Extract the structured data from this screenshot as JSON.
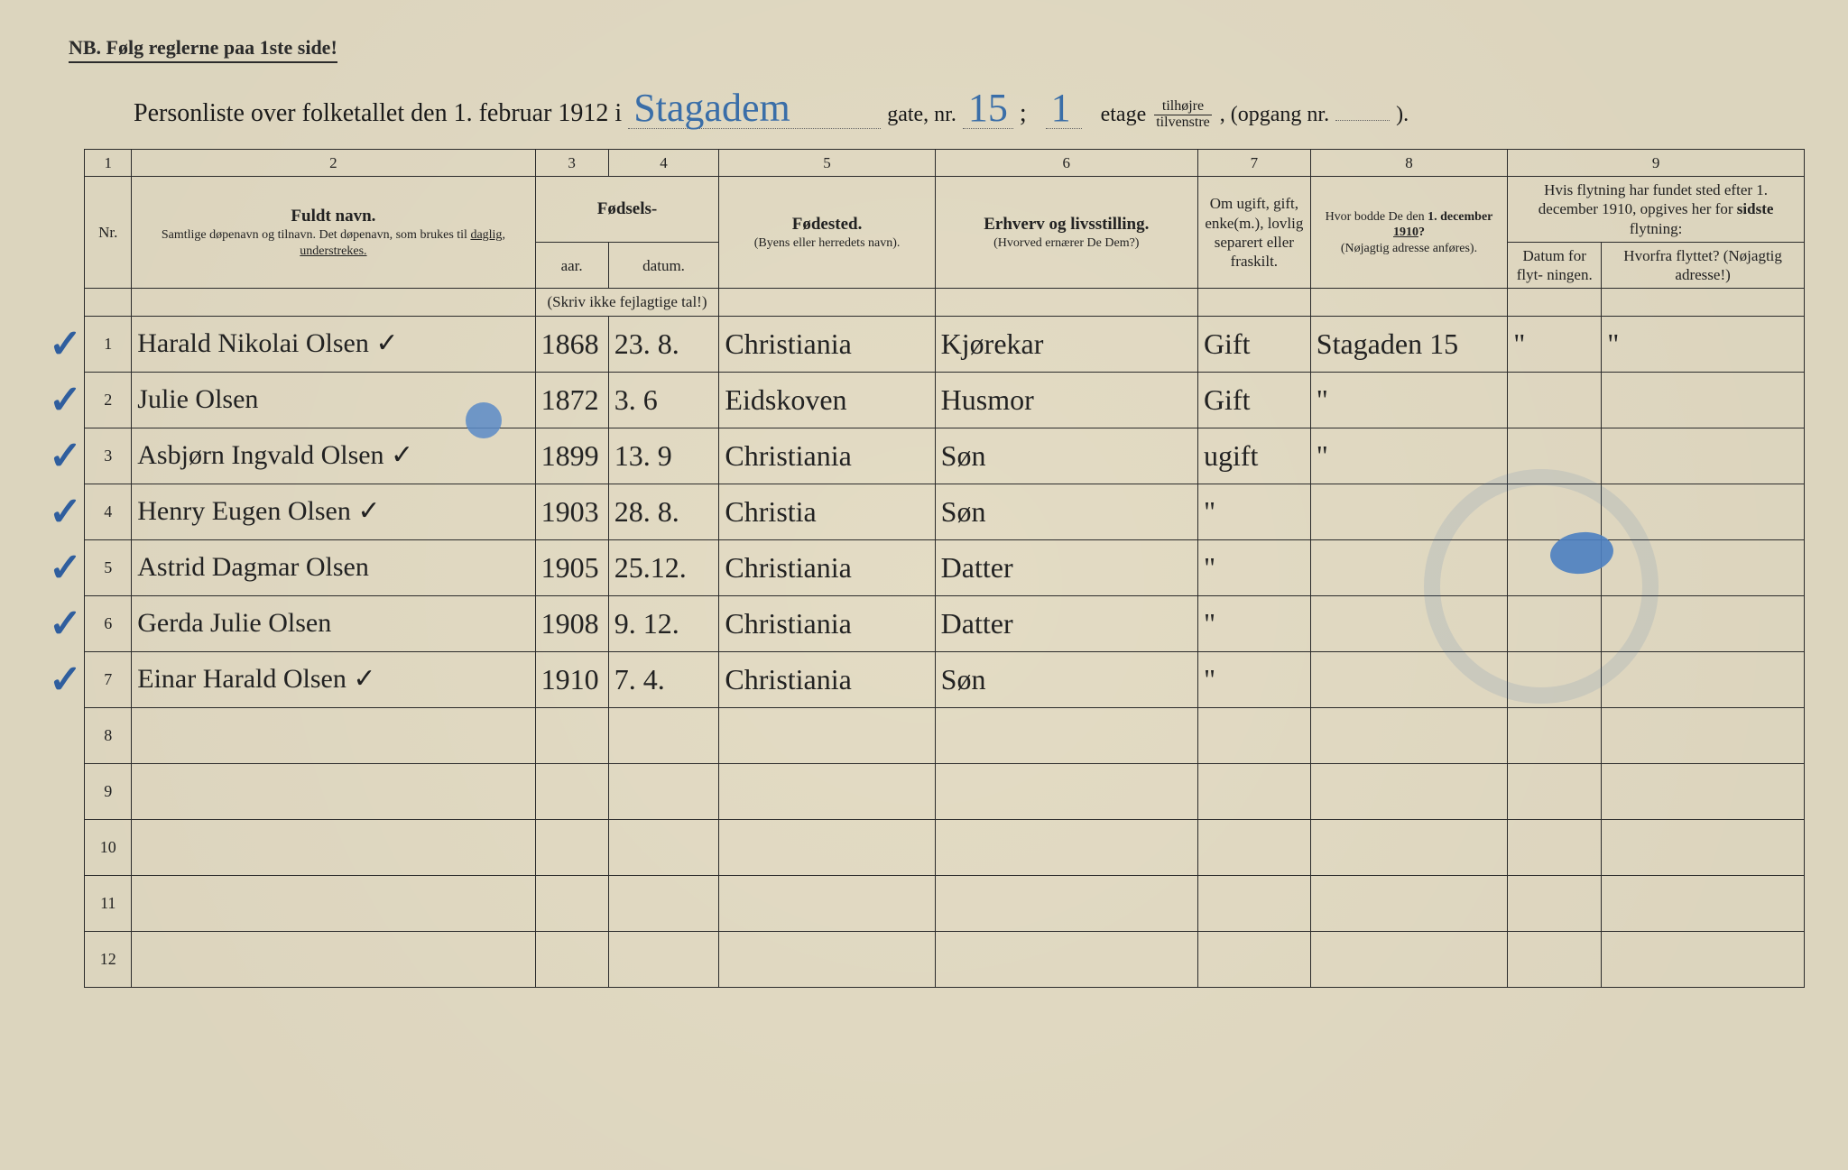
{
  "page": {
    "background_color": "#e8e0c8",
    "ink_color": "#2b2b2b",
    "hand_color": "#3763a0"
  },
  "nb_text": "NB.  Følg reglerne paa 1ste side!",
  "title": {
    "prefix": "Personliste over folketallet den 1. februar 1912 i",
    "street_hand": "Stagadem",
    "gate_label": "gate, nr.",
    "nr_hand": "15",
    "semicolon": ";",
    "etage_hand": "1",
    "etage_label": "etage",
    "fraction_top": "tilhøjre",
    "fraction_bot": "tilvenstre",
    "after_fraction": ", (opgang nr.",
    "opgang_hand": "",
    "end": ")."
  },
  "columns": {
    "nums": [
      "1",
      "2",
      "3",
      "4",
      "5",
      "6",
      "7",
      "8",
      "9"
    ],
    "nr": "Nr.",
    "name_main": "Fuldt navn.",
    "name_sub": "Samtlige døpenavn og tilnavn. Det døpenavn, som brukes til daglig, understrekes.",
    "birth_group": "Fødsels-",
    "birth_year": "aar.",
    "birth_date": "datum.",
    "birth_note": "(Skriv ikke fejlagtige tal!)",
    "place_main": "Fødested.",
    "place_sub": "(Byens eller herredets navn).",
    "occ_main": "Erhverv og livsstilling.",
    "occ_sub": "(Hvorved ernærer De Dem?)",
    "civil": "Om ugift, gift, enke(m.), lovlig separert eller fraskilt.",
    "addr_main": "Hvor bodde De den 1. december 1910?",
    "addr_sub": "(Nøjagtig adresse anføres).",
    "move_group": "Hvis flytning har fundet sted efter 1. december 1910, opgives her for sidste flytning:",
    "move_date": "Datum for flyt- ningen.",
    "move_from": "Hvorfra flyttet? (Nøjagtig adresse!)"
  },
  "rows": [
    {
      "n": "1",
      "check": "✓",
      "name": "Harald Nikolai Olsen ✓",
      "year": "1868",
      "date": "23. 8.",
      "place": "Christiania",
      "occ": "Kjørekar",
      "civil": "Gift",
      "addr": "Stagaden 15",
      "mdate": "\"",
      "from": "\""
    },
    {
      "n": "2",
      "check": "✓",
      "name": "Julie Olsen",
      "year": "1872",
      "date": "3. 6",
      "place": "Eidskoven",
      "occ": "Husmor",
      "civil": "Gift",
      "addr": "\"",
      "mdate": "",
      "from": ""
    },
    {
      "n": "3",
      "check": "✓",
      "name": "Asbjørn Ingvald Olsen ✓",
      "year": "1899",
      "date": "13. 9",
      "place": "Christiania",
      "occ": "Søn",
      "civil": "ugift",
      "addr": "\"",
      "mdate": "",
      "from": ""
    },
    {
      "n": "4",
      "check": "✓",
      "name": "Henry Eugen Olsen ✓",
      "year": "1903",
      "date": "28. 8.",
      "place": "Christia",
      "occ": "Søn",
      "civil": "\"",
      "addr": "",
      "mdate": "",
      "from": ""
    },
    {
      "n": "5",
      "check": "✓",
      "name": "Astrid Dagmar Olsen",
      "year": "1905",
      "date": "25.12.",
      "place": "Christiania",
      "occ": "Datter",
      "civil": "\"",
      "addr": "",
      "mdate": "",
      "from": ""
    },
    {
      "n": "6",
      "check": "✓",
      "name": "Gerda Julie Olsen",
      "year": "1908",
      "date": "9. 12.",
      "place": "Christiania",
      "occ": "Datter",
      "civil": "\"",
      "addr": "",
      "mdate": "",
      "from": ""
    },
    {
      "n": "7",
      "check": "✓",
      "name": "Einar Harald Olsen ✓",
      "year": "1910",
      "date": "7. 4.",
      "place": "Christiania",
      "occ": "Søn",
      "civil": "\"",
      "addr": "",
      "mdate": "",
      "from": ""
    },
    {
      "n": "8",
      "check": "",
      "name": "",
      "year": "",
      "date": "",
      "place": "",
      "occ": "",
      "civil": "",
      "addr": "",
      "mdate": "",
      "from": ""
    },
    {
      "n": "9",
      "check": "",
      "name": "",
      "year": "",
      "date": "",
      "place": "",
      "occ": "",
      "civil": "",
      "addr": "",
      "mdate": "",
      "from": ""
    },
    {
      "n": "10",
      "check": "",
      "name": "",
      "year": "",
      "date": "",
      "place": "",
      "occ": "",
      "civil": "",
      "addr": "",
      "mdate": "",
      "from": ""
    },
    {
      "n": "11",
      "check": "",
      "name": "",
      "year": "",
      "date": "",
      "place": "",
      "occ": "",
      "civil": "",
      "addr": "",
      "mdate": "",
      "from": ""
    },
    {
      "n": "12",
      "check": "",
      "name": "",
      "year": "",
      "date": "",
      "place": "",
      "occ": "",
      "civil": "",
      "addr": "",
      "mdate": "",
      "from": ""
    }
  ]
}
